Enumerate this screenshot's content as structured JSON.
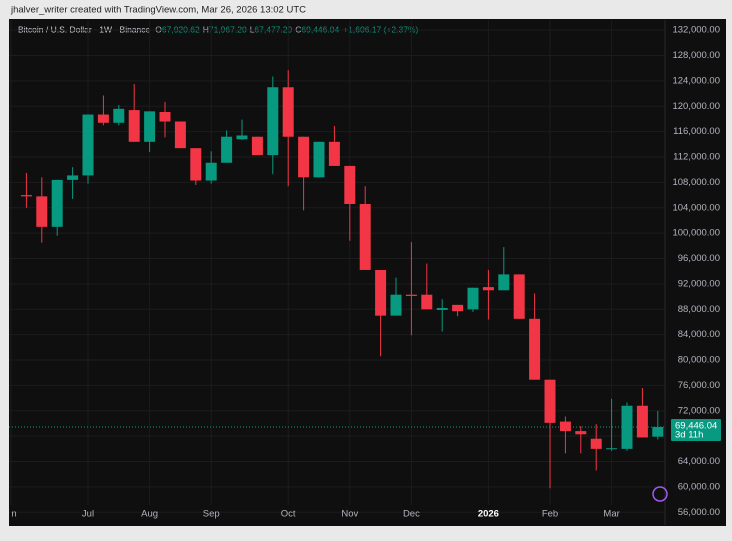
{
  "header": {
    "credit": "jhalver_writer created with TradingView.com, Mar 26, 2026 13:02 UTC"
  },
  "chart_data": {
    "type": "candlestick",
    "symbol": "Bitcoin / U.S. Dollar · 1W · Binance",
    "legend": [
      {
        "key": "O",
        "value": "67,920.62"
      },
      {
        "key": "H",
        "value": "71,967.20"
      },
      {
        "key": "L",
        "value": "67,477.29"
      },
      {
        "key": "C",
        "value": "69,446.04"
      }
    ],
    "change": "+1,606.17 (+2.37%)",
    "last_price_label": "69,446.04",
    "countdown": "3d 11h",
    "categories": [
      "n",
      null,
      null,
      null,
      null,
      "Jul",
      null,
      null,
      null,
      "Aug",
      null,
      null,
      null,
      "Sep",
      null,
      null,
      null,
      null,
      "Oct",
      null,
      null,
      null,
      "Nov",
      null,
      null,
      null,
      "Dec",
      null,
      null,
      null,
      null,
      "2026",
      null,
      null,
      null,
      "Feb",
      null,
      null,
      null,
      "Mar",
      null,
      null,
      null
    ],
    "open": [
      null,
      106000,
      105800,
      101000,
      108400,
      109100,
      118700,
      117400,
      119400,
      114400,
      119100,
      117600,
      113400,
      108300,
      111100,
      114800,
      115200,
      112300,
      123000,
      115200,
      108800,
      114400,
      110600,
      104600,
      94200,
      87000,
      90300,
      90300,
      87900,
      88700,
      88000,
      91500,
      91000,
      93500,
      86500,
      76900,
      70300,
      68800,
      67600,
      66000,
      66000,
      72800,
      67920.62
    ],
    "high": [
      null,
      109500,
      108800,
      108400,
      110400,
      118700,
      121700,
      120200,
      123500,
      119200,
      120700,
      117600,
      113400,
      112900,
      116200,
      117900,
      115200,
      124700,
      125700,
      115200,
      114400,
      116900,
      110600,
      107400,
      94200,
      93000,
      98600,
      95200,
      89600,
      88700,
      91400,
      94200,
      97800,
      93500,
      90500,
      76900,
      71100,
      69600,
      69900,
      73900,
      73300,
      75600,
      71967.2
    ],
    "low": [
      null,
      104000,
      98500,
      99600,
      105400,
      107800,
      117000,
      117000,
      114400,
      112800,
      115100,
      113400,
      107600,
      107800,
      111100,
      114700,
      112300,
      109300,
      107400,
      103600,
      108800,
      110600,
      98800,
      94200,
      80600,
      87000,
      83900,
      88000,
      84500,
      86900,
      87600,
      86400,
      91000,
      86500,
      76900,
      59800,
      65300,
      65300,
      62600,
      65700,
      65700,
      67800,
      67477.29
    ],
    "close": [
      null,
      105800,
      101000,
      108400,
      109100,
      118700,
      117400,
      119600,
      114400,
      119200,
      117600,
      113400,
      108300,
      111100,
      115200,
      115400,
      112300,
      123000,
      115200,
      108800,
      114400,
      110600,
      104600,
      94200,
      87000,
      90300,
      90100,
      88000,
      88200,
      87700,
      91400,
      91000,
      93500,
      86500,
      76900,
      70100,
      68800,
      68300,
      66000,
      66100,
      72800,
      67800,
      69446.04
    ],
    "up_color": "#089981",
    "down_color": "#f23645",
    "ylim": [
      54000,
      133600
    ],
    "yticks": [
      {
        "value": 56000,
        "label": "56,000.00"
      },
      {
        "value": 60000,
        "label": "60,000.00"
      },
      {
        "value": 64000,
        "label": "64,000.00"
      },
      {
        "value": 68000,
        "label": "68,000.00"
      },
      {
        "value": 72000,
        "label": "72,000.00"
      },
      {
        "value": 76000,
        "label": "76,000.00"
      },
      {
        "value": 80000,
        "label": "80,000.00"
      },
      {
        "value": 84000,
        "label": "84,000.00"
      },
      {
        "value": 88000,
        "label": "88,000.00"
      },
      {
        "value": 92000,
        "label": "92,000.00"
      },
      {
        "value": 96000,
        "label": "96,000.00"
      },
      {
        "value": 100000,
        "label": "100,000.00"
      },
      {
        "value": 104000,
        "label": "104,000.00"
      },
      {
        "value": 108000,
        "label": "108,000.00"
      },
      {
        "value": 112000,
        "label": "112,000.00"
      },
      {
        "value": 116000,
        "label": "116,000.00"
      },
      {
        "value": 120000,
        "label": "120,000.00"
      },
      {
        "value": 124000,
        "label": "124,000.00"
      },
      {
        "value": 128000,
        "label": "128,000.00"
      },
      {
        "value": 132000,
        "label": "132,000.00"
      }
    ],
    "grid": true
  }
}
